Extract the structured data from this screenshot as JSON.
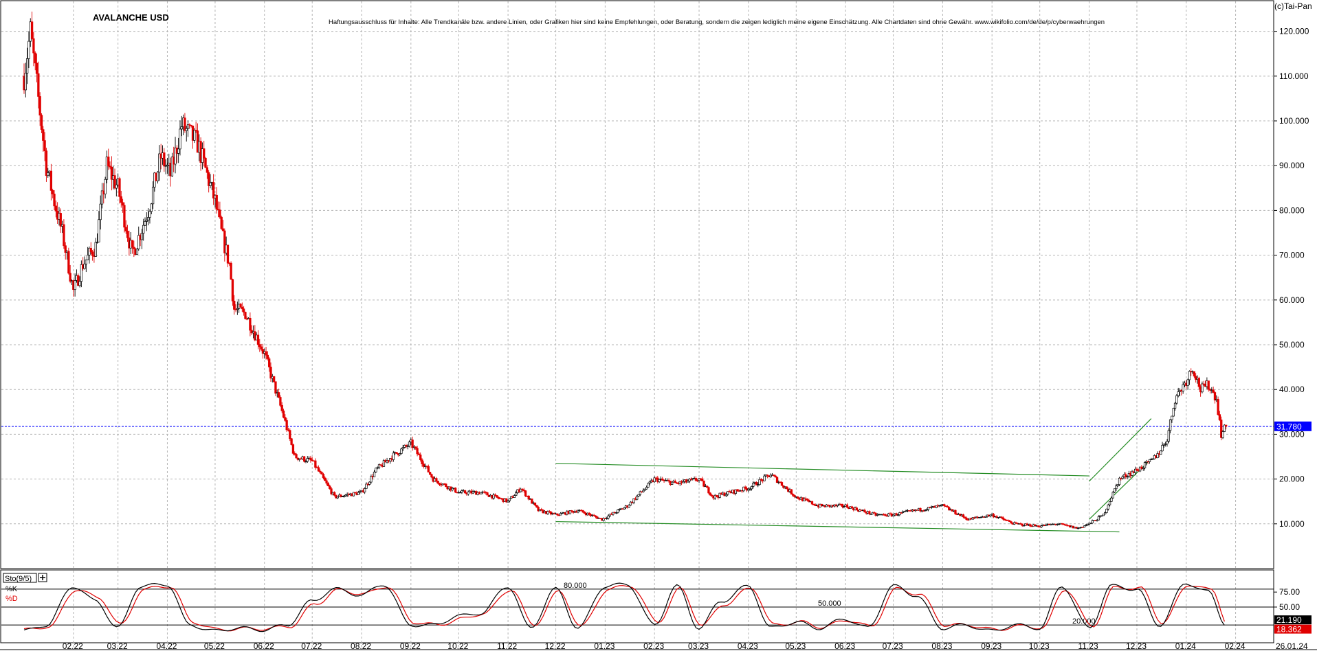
{
  "chart_data": [
    {
      "type": "candlestick",
      "title": "AVALANCHE USD",
      "disclaimer": "Haftungsausschluss für Inhalte: Alle Trendkanäle bzw. andere Linien, oder Grafiken hier sind keine Empfehlungen, oder Beratung, sondern die zeigen lediglich meine eigene Einschätzung. Alle Chartdaten sind ohne Gewähr. www.wikifolio.com/de/de/p/cyberwaehrungen",
      "copyright": "(c)Tai-Pan",
      "ylim": [
        0,
        127
      ],
      "y_ticks": [
        "120.000",
        "110.000",
        "100.000",
        "90.000",
        "80.000",
        "70.000",
        "60.000",
        "50.000",
        "40.000",
        "30.000",
        "20.000",
        "10.000"
      ],
      "y_tick_values": [
        120,
        110,
        100,
        90,
        80,
        70,
        60,
        50,
        40,
        30,
        20,
        10
      ],
      "x_ticks": [
        "02.22",
        "03.22",
        "04.22",
        "05.22",
        "06.22",
        "07.22",
        "08.22",
        "09.22",
        "10.22",
        "11.22",
        "12.22",
        "01.23",
        "02.23",
        "03.23",
        "04.23",
        "05.23",
        "06.23",
        "07.23",
        "08.23",
        "09.23",
        "10.23",
        "11.23",
        "12.23",
        "01.24",
        "02.24"
      ],
      "current_price": 31.78,
      "current_price_label": "31.780",
      "last_date_label": "26.01.24",
      "price_path": {
        "x": [
          "2022-01-01",
          "2022-01-05",
          "2022-01-10",
          "2022-01-15",
          "2022-01-20",
          "2022-01-25",
          "2022-02-01",
          "2022-02-07",
          "2022-02-15",
          "2022-02-22",
          "2022-03-01",
          "2022-03-10",
          "2022-03-20",
          "2022-03-28",
          "2022-04-03",
          "2022-04-10",
          "2022-04-20",
          "2022-05-01",
          "2022-05-05",
          "2022-05-10",
          "2022-05-13",
          "2022-05-20",
          "2022-06-01",
          "2022-06-13",
          "2022-06-20",
          "2022-07-01",
          "2022-07-15",
          "2022-08-01",
          "2022-08-10",
          "2022-08-20",
          "2022-09-01",
          "2022-09-15",
          "2022-10-01",
          "2022-10-15",
          "2022-11-01",
          "2022-11-09",
          "2022-11-20",
          "2022-12-01",
          "2022-12-15",
          "2022-12-30",
          "2023-01-15",
          "2023-02-01",
          "2023-02-15",
          "2023-03-01",
          "2023-03-10",
          "2023-03-20",
          "2023-04-01",
          "2023-04-15",
          "2023-05-01",
          "2023-05-15",
          "2023-06-01",
          "2023-06-10",
          "2023-06-20",
          "2023-07-01",
          "2023-07-15",
          "2023-08-01",
          "2023-08-17",
          "2023-09-01",
          "2023-09-15",
          "2023-10-01",
          "2023-10-12",
          "2023-10-25",
          "2023-11-01",
          "2023-11-10",
          "2023-11-20",
          "2023-11-25",
          "2023-12-01",
          "2023-12-10",
          "2023-12-15",
          "2023-12-20",
          "2023-12-25",
          "2024-01-01",
          "2024-01-05",
          "2024-01-10",
          "2024-01-15",
          "2024-01-20",
          "2024-01-23",
          "2024-01-26"
        ],
        "close": [
          110,
          120,
          105,
          90,
          82,
          75,
          62,
          68,
          72,
          90,
          85,
          70,
          80,
          92,
          88,
          99,
          95,
          82,
          75,
          68,
          58,
          57,
          48,
          34,
          25,
          24,
          16,
          17,
          22,
          25,
          28,
          20,
          17,
          17,
          15,
          18,
          13,
          12,
          13,
          11,
          14,
          20,
          19,
          20,
          16,
          17,
          18,
          21,
          16,
          14,
          14,
          13,
          12,
          12,
          13,
          14,
          11,
          12,
          10,
          9.5,
          10,
          9,
          10,
          12,
          20,
          21,
          22,
          24,
          26,
          29,
          38,
          42,
          45,
          40,
          41,
          38,
          30,
          31.78
        ]
      }
    },
    {
      "type": "line",
      "title": "Sto(9/5)",
      "ylim": [
        -5,
        105
      ],
      "series": [
        {
          "name": "%K",
          "color": "#000000"
        },
        {
          "name": "%D",
          "color": "#e00000"
        }
      ],
      "levels": [
        {
          "value": 80,
          "label": "80.000"
        },
        {
          "value": 50,
          "label": "50.000"
        },
        {
          "value": 20,
          "label": "20.000"
        }
      ],
      "y_ticks": [
        "75.00",
        "50.00"
      ],
      "y_tick_values": [
        75,
        50
      ],
      "current_k": 21.19,
      "current_k_label": "21.190",
      "current_d": 18.362,
      "current_d_label": "18.362",
      "stoch_path": {
        "x": [
          "2022-01-01",
          "2022-01-15",
          "2022-02-01",
          "2022-02-15",
          "2022-03-01",
          "2022-03-15",
          "2022-04-01",
          "2022-04-15",
          "2022-05-01",
          "2022-05-15",
          "2022-06-01",
          "2022-06-15",
          "2022-07-01",
          "2022-07-15",
          "2022-08-01",
          "2022-08-15",
          "2022-09-01",
          "2022-09-15",
          "2022-10-01",
          "2022-10-15",
          "2022-11-01",
          "2022-11-15",
          "2022-12-01",
          "2022-12-15",
          "2023-01-01",
          "2023-01-15",
          "2023-02-01",
          "2023-02-15",
          "2023-03-01",
          "2023-03-15",
          "2023-04-01",
          "2023-04-15",
          "2023-05-01",
          "2023-05-15",
          "2023-06-01",
          "2023-06-15",
          "2023-07-01",
          "2023-07-15",
          "2023-08-01",
          "2023-08-15",
          "2023-09-01",
          "2023-09-15",
          "2023-10-01",
          "2023-10-15",
          "2023-11-01",
          "2023-11-15",
          "2023-12-01",
          "2023-12-15",
          "2024-01-01",
          "2024-01-15",
          "2024-01-26"
        ],
        "k": [
          10,
          20,
          85,
          60,
          15,
          85,
          88,
          20,
          10,
          15,
          12,
          20,
          60,
          80,
          70,
          88,
          20,
          20,
          35,
          40,
          85,
          15,
          80,
          15,
          85,
          88,
          20,
          85,
          15,
          60,
          85,
          15,
          25,
          15,
          30,
          15,
          85,
          70,
          15,
          20,
          10,
          20,
          15,
          85,
          15,
          85,
          80,
          20,
          90,
          75,
          21.19
        ],
        "d": [
          12,
          18,
          80,
          65,
          20,
          80,
          85,
          25,
          12,
          14,
          14,
          18,
          55,
          78,
          72,
          85,
          25,
          20,
          30,
          40,
          80,
          20,
          75,
          18,
          80,
          86,
          25,
          80,
          20,
          55,
          82,
          20,
          25,
          17,
          28,
          17,
          80,
          72,
          20,
          20,
          12,
          18,
          16,
          80,
          18,
          82,
          82,
          25,
          88,
          78,
          18.362
        ]
      }
    }
  ],
  "trend_lines": [
    {
      "x": [
        "2022-12-01",
        "2023-11-01"
      ],
      "y": [
        23.5,
        20.7
      ]
    },
    {
      "x": [
        "2022-12-01",
        "2023-11-20"
      ],
      "y": [
        10.5,
        8.2
      ]
    },
    {
      "x": [
        "2023-11-01",
        "2023-12-10"
      ],
      "y": [
        19.5,
        33.5
      ]
    },
    {
      "x": [
        "2023-11-01",
        "2023-12-10"
      ],
      "y": [
        11,
        24.5
      ]
    }
  ],
  "colors": {
    "up": "#000000",
    "down": "#e00000",
    "grid": "#b4b4b4",
    "price_line": "#0000ff",
    "trend_line": "#228b22",
    "level_line": "#000000"
  }
}
